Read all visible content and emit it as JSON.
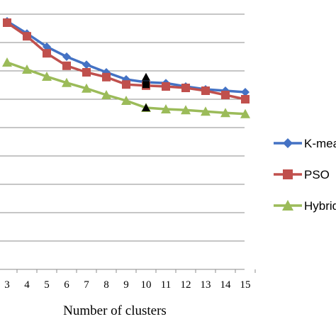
{
  "chart_data": {
    "type": "line",
    "title": "",
    "xlabel": "Number of clusters",
    "ylabel": "",
    "x": [
      3,
      4,
      5,
      6,
      7,
      8,
      9,
      10,
      11,
      12,
      13,
      14,
      15
    ],
    "ylim": [
      0,
      10
    ],
    "grid": true,
    "legend": "right",
    "series": [
      {
        "name": "K-mea",
        "color": "#4472C4",
        "marker": "diamond",
        "values": [
          8.75,
          8.32,
          7.85,
          7.5,
          7.22,
          6.95,
          6.7,
          6.6,
          6.57,
          6.45,
          6.35,
          6.3,
          6.25
        ]
      },
      {
        "name": "PSO",
        "color": "#C0504D",
        "marker": "square",
        "values": [
          8.7,
          8.22,
          7.62,
          7.18,
          6.95,
          6.78,
          6.52,
          6.48,
          6.45,
          6.4,
          6.3,
          6.15,
          6.0
        ]
      },
      {
        "name": "Hybrid",
        "color": "#9BBB59",
        "marker": "triangle",
        "values": [
          7.3,
          7.05,
          6.8,
          6.58,
          6.38,
          6.15,
          5.95,
          5.7,
          5.65,
          5.62,
          5.57,
          5.52,
          5.48
        ]
      }
    ],
    "annotations": [
      {
        "x": 10,
        "y": 6.78,
        "marker": "triangle",
        "color": "#000000"
      },
      {
        "x": 10,
        "y": 6.52,
        "marker": "square",
        "color": "#000000"
      },
      {
        "x": 10,
        "y": 5.7,
        "marker": "triangle",
        "color": "#000000"
      }
    ]
  }
}
